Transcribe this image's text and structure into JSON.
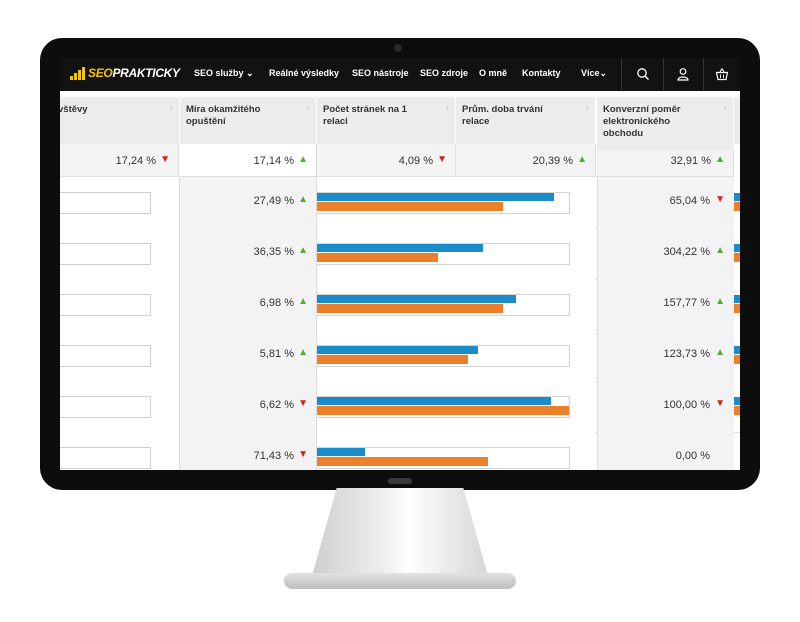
{
  "brand": {
    "prefix": "SEO",
    "name": "PRAKTICKY",
    "accent": "#f5c400"
  },
  "nav": {
    "items": [
      "SEO služby",
      "Reálné výsledky",
      "SEO nástroje",
      "SEO zdroje",
      "O mně",
      "Kontakty",
      "Více"
    ],
    "icons": [
      "search-icon",
      "user-icon",
      "basket-icon"
    ]
  },
  "columns": [
    {
      "label": "vštěvy",
      "total": "17,24 %",
      "trend": "down"
    },
    {
      "label": "Míra okamžitého opuštění",
      "total": "17,14 %",
      "trend": "up"
    },
    {
      "label": "Počet stránek na 1 relaci",
      "total": "4,09 %",
      "trend": "down"
    },
    {
      "label": "Prům. doba trvání relace",
      "total": "20,39 %",
      "trend": "up"
    },
    {
      "label": "Konverzní poměr elektronického obchodu",
      "total": "32,91 %",
      "trend": "up"
    }
  ],
  "rows": [
    {
      "rate": "27,49 %",
      "rate_trend": "up",
      "bar_blue": 0.94,
      "bar_orange": 0.74,
      "conv": "65,04 %",
      "conv_trend": "down"
    },
    {
      "rate": "36,35 %",
      "rate_trend": "up",
      "bar_blue": 0.66,
      "bar_orange": 0.48,
      "conv": "304,22 %",
      "conv_trend": "up"
    },
    {
      "rate": "6,98 %",
      "rate_trend": "up",
      "bar_blue": 0.79,
      "bar_orange": 0.74,
      "conv": "157,77 %",
      "conv_trend": "up"
    },
    {
      "rate": "5,81 %",
      "rate_trend": "up",
      "bar_blue": 0.64,
      "bar_orange": 0.6,
      "conv": "123,73 %",
      "conv_trend": "up"
    },
    {
      "rate": "6,62 %",
      "rate_trend": "down",
      "bar_blue": 0.93,
      "bar_orange": 1.0,
      "conv": "100,00 %",
      "conv_trend": "down"
    },
    {
      "rate": "71,43 %",
      "rate_trend": "down",
      "bar_blue": 0.19,
      "bar_orange": 0.68,
      "conv": "0,00 %",
      "conv_trend": "none"
    }
  ],
  "colors": {
    "bar_blue": "#1b8ccb",
    "bar_orange": "#ec7f2a",
    "up": "#5aa83a",
    "down": "#d62020"
  }
}
